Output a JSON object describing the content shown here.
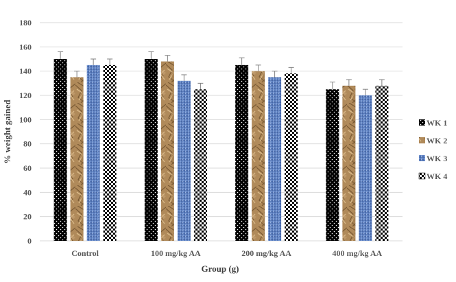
{
  "chart_data": {
    "type": "bar",
    "title": "",
    "xlabel": "Group  (g)",
    "ylabel": "% weight gained",
    "ylim": [
      0,
      180
    ],
    "yticks": [
      0,
      20,
      40,
      60,
      80,
      100,
      120,
      140,
      160,
      180
    ],
    "grid": true,
    "legend_position": "right",
    "categories": [
      "Control",
      "100 mg/kg AA",
      "200 mg/kg AA",
      "400 mg/kg AA"
    ],
    "series": [
      {
        "name": "WK 1",
        "values": [
          150,
          150,
          145,
          125
        ],
        "errors": [
          6,
          6,
          6,
          6
        ],
        "color": "#000000",
        "pattern": "dots"
      },
      {
        "name": "WK 2",
        "values": [
          135,
          148,
          140,
          128
        ],
        "errors": [
          5,
          5,
          5,
          5
        ],
        "color": "#b08a5a",
        "pattern": "crumpled-paper"
      },
      {
        "name": "WK 3",
        "values": [
          145,
          132,
          135,
          120
        ],
        "errors": [
          5,
          5,
          5,
          5
        ],
        "color": "#5b7fbf",
        "pattern": "denim"
      },
      {
        "name": "WK 4",
        "values": [
          145,
          125,
          138,
          128
        ],
        "errors": [
          5,
          5,
          5,
          5
        ],
        "color": "#000000",
        "pattern": "checker"
      }
    ]
  }
}
